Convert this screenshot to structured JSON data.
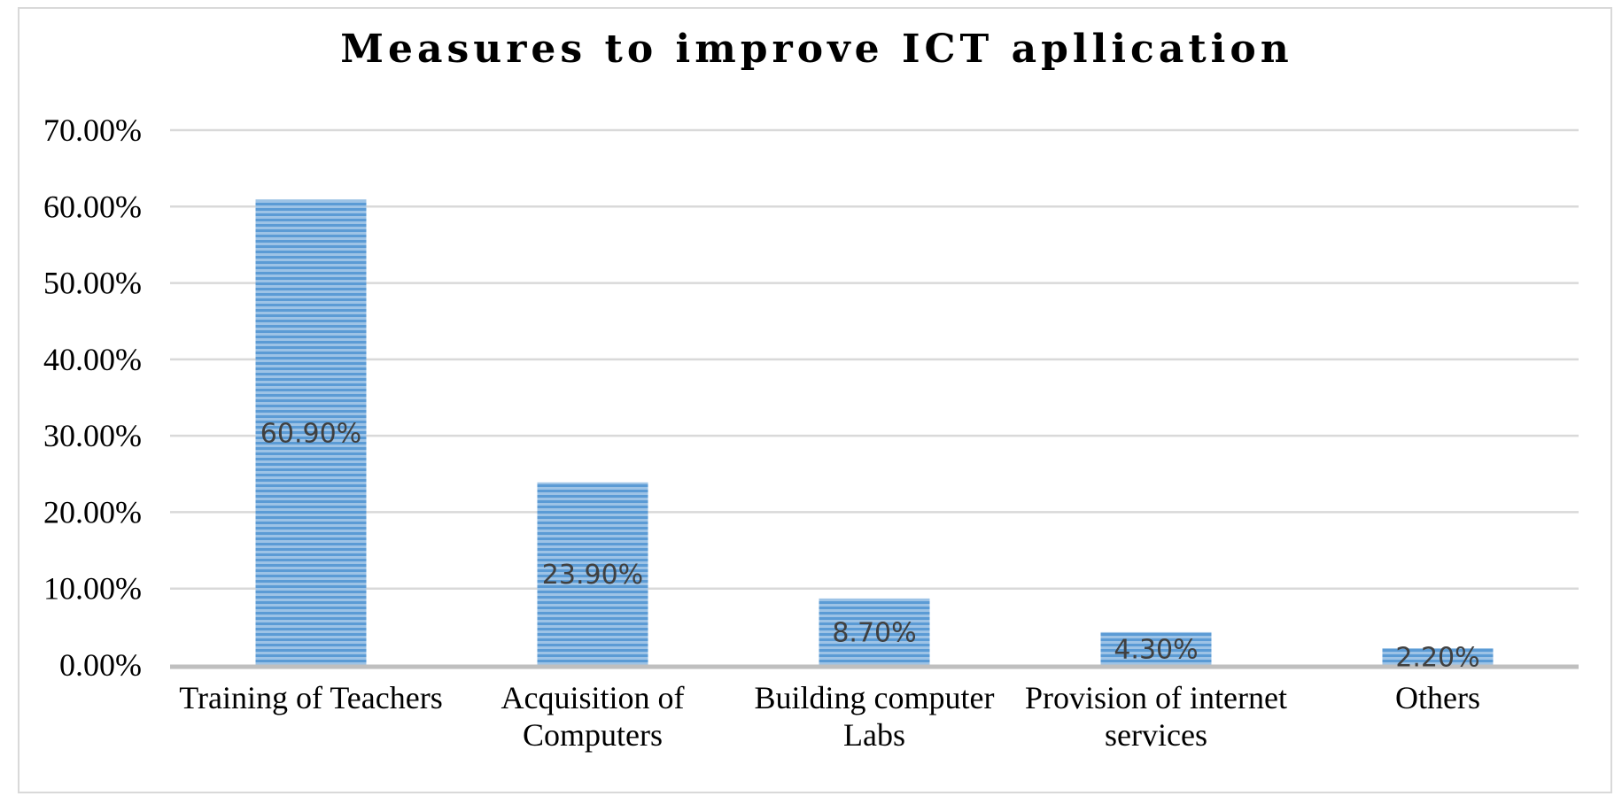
{
  "chart_data": {
    "type": "bar",
    "title": "Measures to improve ICT apllication",
    "xlabel": "",
    "ylabel": "",
    "categories": [
      "Training of Teachers",
      "Acquisition of Computers",
      "Building computer Labs",
      "Provision of internet services",
      "Others"
    ],
    "category_lines": [
      [
        "Training of Teachers"
      ],
      [
        "Acquisition of",
        "Computers"
      ],
      [
        "Building computer",
        "Labs"
      ],
      [
        "Provision of internet",
        "services"
      ],
      [
        "Others"
      ]
    ],
    "values": [
      60.9,
      23.9,
      8.7,
      4.3,
      2.2
    ],
    "data_labels": [
      "60.90%",
      "23.90%",
      "8.70%",
      "4.30%",
      "2.20%"
    ],
    "ylim": [
      0,
      70
    ],
    "yticks": [
      0,
      10,
      20,
      30,
      40,
      50,
      60,
      70
    ],
    "ytick_labels": [
      "0.00%",
      "10.00%",
      "20.00%",
      "30.00%",
      "40.00%",
      "50.00%",
      "60.00%",
      "70.00%"
    ],
    "grid": true,
    "legend": "none",
    "colors": {
      "bar_fill": "#9dc3e6",
      "bar_stripe": "#5b9bd5",
      "gridline": "#d9d9d9",
      "axis": "#bfbfbf"
    }
  }
}
